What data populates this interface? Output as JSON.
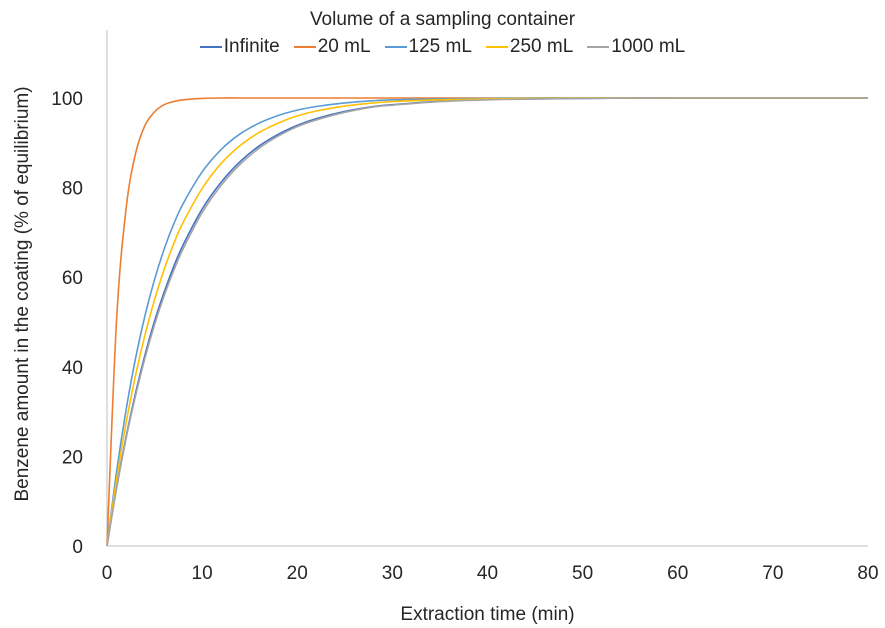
{
  "chart_data": {
    "type": "line",
    "title": "",
    "legend_title": "Volume of a sampling container",
    "legend_position": "top",
    "xlabel": "Extraction time (min)",
    "ylabel": "Benzene amount in the coating (% of equilibrium)",
    "xlim": [
      0,
      80
    ],
    "ylim": [
      0,
      100
    ],
    "x_ticks": [
      0,
      10,
      20,
      30,
      40,
      50,
      60,
      70,
      80
    ],
    "y_ticks": [
      0,
      20,
      40,
      60,
      80,
      100
    ],
    "grid": false,
    "x": [
      0,
      1,
      2,
      3,
      4,
      5,
      6,
      7,
      8,
      10,
      12,
      14,
      16,
      18,
      20,
      22,
      25,
      28,
      30,
      35,
      40,
      45,
      50,
      55,
      60,
      70,
      80
    ],
    "series": [
      {
        "name": "Infinite",
        "color": "#4472C4",
        "values": [
          0,
          13.0,
          24.3,
          34.1,
          42.7,
          50.2,
          56.6,
          62.3,
          67.2,
          75.2,
          81.2,
          85.8,
          89.3,
          91.9,
          93.9,
          95.4,
          97.0,
          98.1,
          98.5,
          99.3,
          99.7,
          99.8,
          99.9,
          100,
          100,
          100,
          100
        ]
      },
      {
        "name": "20 mL",
        "color": "#ED7D31",
        "values": [
          0,
          50.2,
          75.2,
          87.6,
          93.9,
          96.9,
          98.5,
          99.2,
          99.6,
          99.9,
          100,
          100,
          100,
          100,
          100,
          100,
          100,
          100,
          100,
          100,
          100,
          100,
          100,
          100,
          100,
          100,
          100
        ]
      },
      {
        "name": "125 mL",
        "color": "#5B9BD5",
        "values": [
          0,
          16.5,
          30.3,
          41.9,
          51.5,
          59.5,
          66.2,
          71.8,
          76.4,
          83.5,
          88.5,
          92.0,
          94.4,
          96.1,
          97.3,
          98.1,
          98.9,
          99.4,
          99.6,
          99.8,
          99.9,
          100,
          100,
          100,
          100,
          100,
          100
        ]
      },
      {
        "name": "250 mL",
        "color": "#FFC000",
        "values": [
          0,
          14.8,
          27.4,
          38.1,
          47.2,
          55.0,
          61.7,
          67.4,
          72.2,
          79.8,
          85.4,
          89.4,
          92.3,
          94.4,
          96.0,
          97.1,
          98.2,
          98.9,
          99.2,
          99.6,
          99.8,
          99.9,
          100,
          100,
          100,
          100,
          100
        ]
      },
      {
        "name": "1000 mL",
        "color": "#A5A5A5",
        "values": [
          0,
          12.7,
          23.9,
          33.5,
          42.0,
          49.4,
          55.8,
          61.4,
          66.3,
          74.4,
          80.5,
          85.2,
          88.8,
          91.5,
          93.6,
          95.1,
          96.8,
          98.0,
          98.4,
          99.2,
          99.6,
          99.8,
          99.9,
          100,
          100,
          100,
          100
        ]
      }
    ]
  }
}
